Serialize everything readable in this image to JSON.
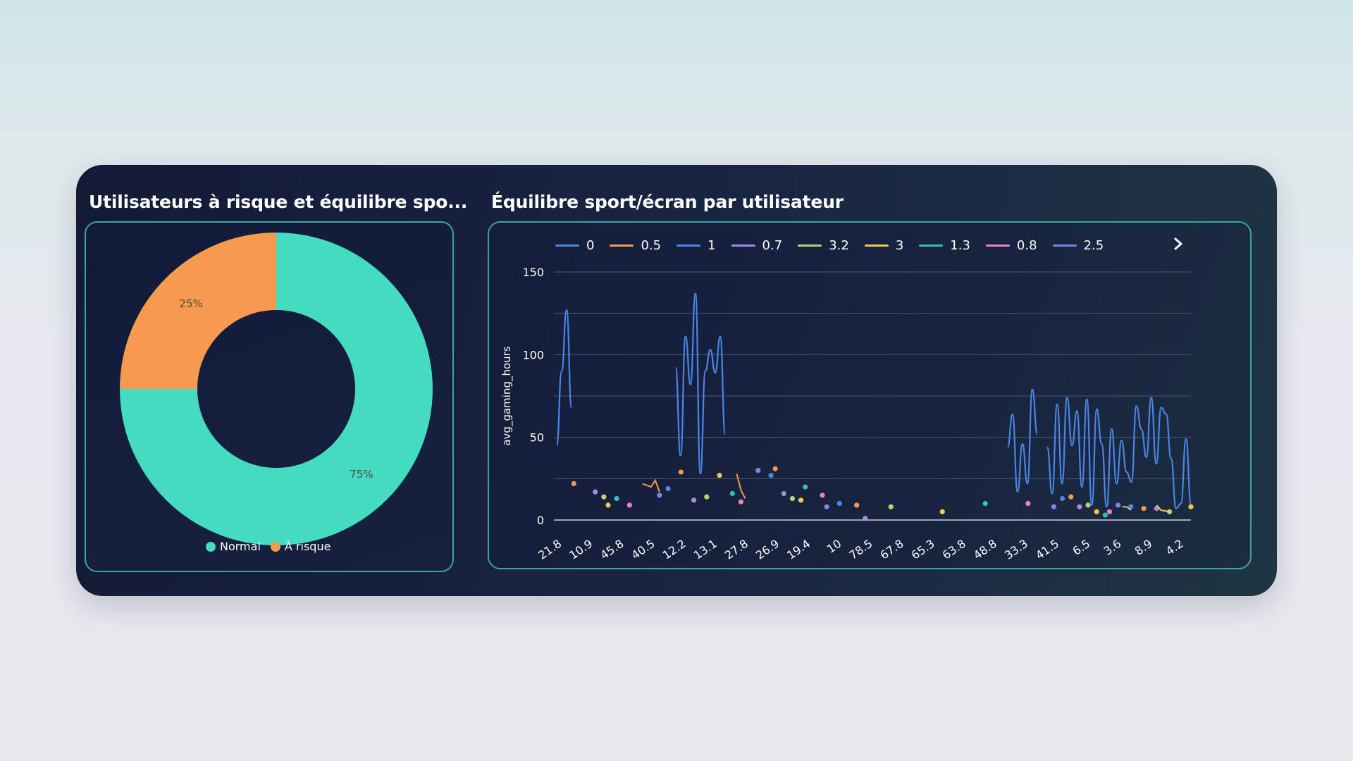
{
  "left_card": {
    "title": "Utilisateurs à risque et équilibre spo...",
    "chart_data": {
      "type": "pie",
      "donut": true,
      "slices": [
        {
          "name": "Normal",
          "value": 75,
          "label": "75%",
          "color": "#43dcc0"
        },
        {
          "name": "À risque",
          "value": 25,
          "label": "25%",
          "color": "#f59a4f"
        }
      ],
      "legend_position": "bottom"
    }
  },
  "right_card": {
    "title": "Équilibre sport/écran par utilisateur",
    "next_icon": "chevron-right-icon",
    "chart_data": {
      "type": "line",
      "ylabel": "avg_gaming_hours",
      "ylim": [
        0,
        150
      ],
      "yticks": [
        "0",
        "50",
        "100",
        "150"
      ],
      "xticks": [
        "21.8",
        "10.9",
        "45.8",
        "40.5",
        "12.2",
        "13.1",
        "27.8",
        "26.9",
        "19.4",
        "10",
        "78.5",
        "67.8",
        "65.3",
        "63.8",
        "48.8",
        "33.3",
        "41.5",
        "6.5",
        "3.6",
        "8.9",
        "4.2"
      ],
      "grid": true,
      "legend_position": "top",
      "series": [
        {
          "name": "0",
          "color": "#4a86e8",
          "values": [
            45,
            90,
            127,
            68,
            null,
            null,
            null,
            null,
            null,
            null,
            null,
            null,
            null,
            null,
            null,
            null,
            null,
            null,
            null,
            null,
            null,
            null,
            null,
            null,
            92,
            39,
            111,
            82,
            137,
            28,
            90,
            103,
            89,
            111,
            52,
            null,
            null,
            null,
            null,
            null,
            null,
            null,
            null,
            null,
            null,
            null,
            null,
            null,
            null,
            null,
            null,
            null,
            null,
            null,
            null,
            null,
            null,
            null,
            null,
            null,
            null,
            null,
            null,
            null,
            null,
            null,
            null,
            null,
            null,
            null,
            null,
            null,
            null,
            null,
            null,
            null,
            null,
            null,
            null,
            null,
            null,
            null,
            null,
            null,
            null,
            null,
            null,
            null,
            null,
            null,
            null,
            44,
            64,
            17,
            46,
            22,
            79,
            52,
            null,
            44,
            16,
            70,
            22,
            74,
            45,
            66,
            20,
            73,
            9,
            67,
            46,
            8,
            55,
            22,
            48,
            29,
            23,
            69,
            55,
            38,
            74,
            34,
            68,
            64,
            37,
            7,
            10,
            49,
            10
          ]
        },
        {
          "name": "0.5",
          "color": "#f59a4f",
          "values": [
            22,
            null,
            null,
            null,
            null,
            null,
            null,
            null,
            null,
            null,
            null,
            null,
            null,
            null,
            null,
            null,
            null,
            null,
            null,
            null,
            null,
            null,
            null,
            null,
            null,
            null,
            null,
            null,
            null,
            null,
            null,
            null,
            null,
            null,
            null,
            null,
            null,
            null,
            null,
            null,
            null,
            null,
            null,
            null,
            null,
            null,
            null,
            null,
            null,
            null,
            null,
            null,
            null,
            null,
            null,
            null,
            null,
            null,
            null,
            null,
            null,
            null,
            null,
            null,
            null,
            null,
            null,
            null,
            null,
            null,
            null,
            null,
            null,
            null,
            null,
            null,
            null,
            null,
            null,
            null,
            null,
            null,
            null,
            null,
            null,
            null,
            null,
            null,
            null,
            null,
            null,
            null,
            null,
            null,
            null,
            null,
            null,
            null,
            null,
            null,
            null,
            null,
            null,
            null,
            null,
            null,
            null,
            null,
            null,
            null,
            null,
            null,
            null,
            null,
            null,
            null,
            null,
            null,
            null,
            null,
            null,
            null,
            null,
            null,
            null,
            null,
            null,
            null,
            null,
            null,
            null,
            null,
            null
          ]
        },
        {
          "name": "1",
          "color": "#4a86e8",
          "values": []
        },
        {
          "name": "0.7",
          "color": "#a58be6",
          "values": []
        },
        {
          "name": "3.2",
          "color": "#b5d66b",
          "values": []
        },
        {
          "name": "3",
          "color": "#f2c94c",
          "values": []
        },
        {
          "name": "1.3",
          "color": "#2fc4b2",
          "values": []
        },
        {
          "name": "0.8",
          "color": "#f080c0",
          "values": []
        },
        {
          "name": "2.5",
          "color": "#7b84e8",
          "values": []
        }
      ]
    }
  }
}
